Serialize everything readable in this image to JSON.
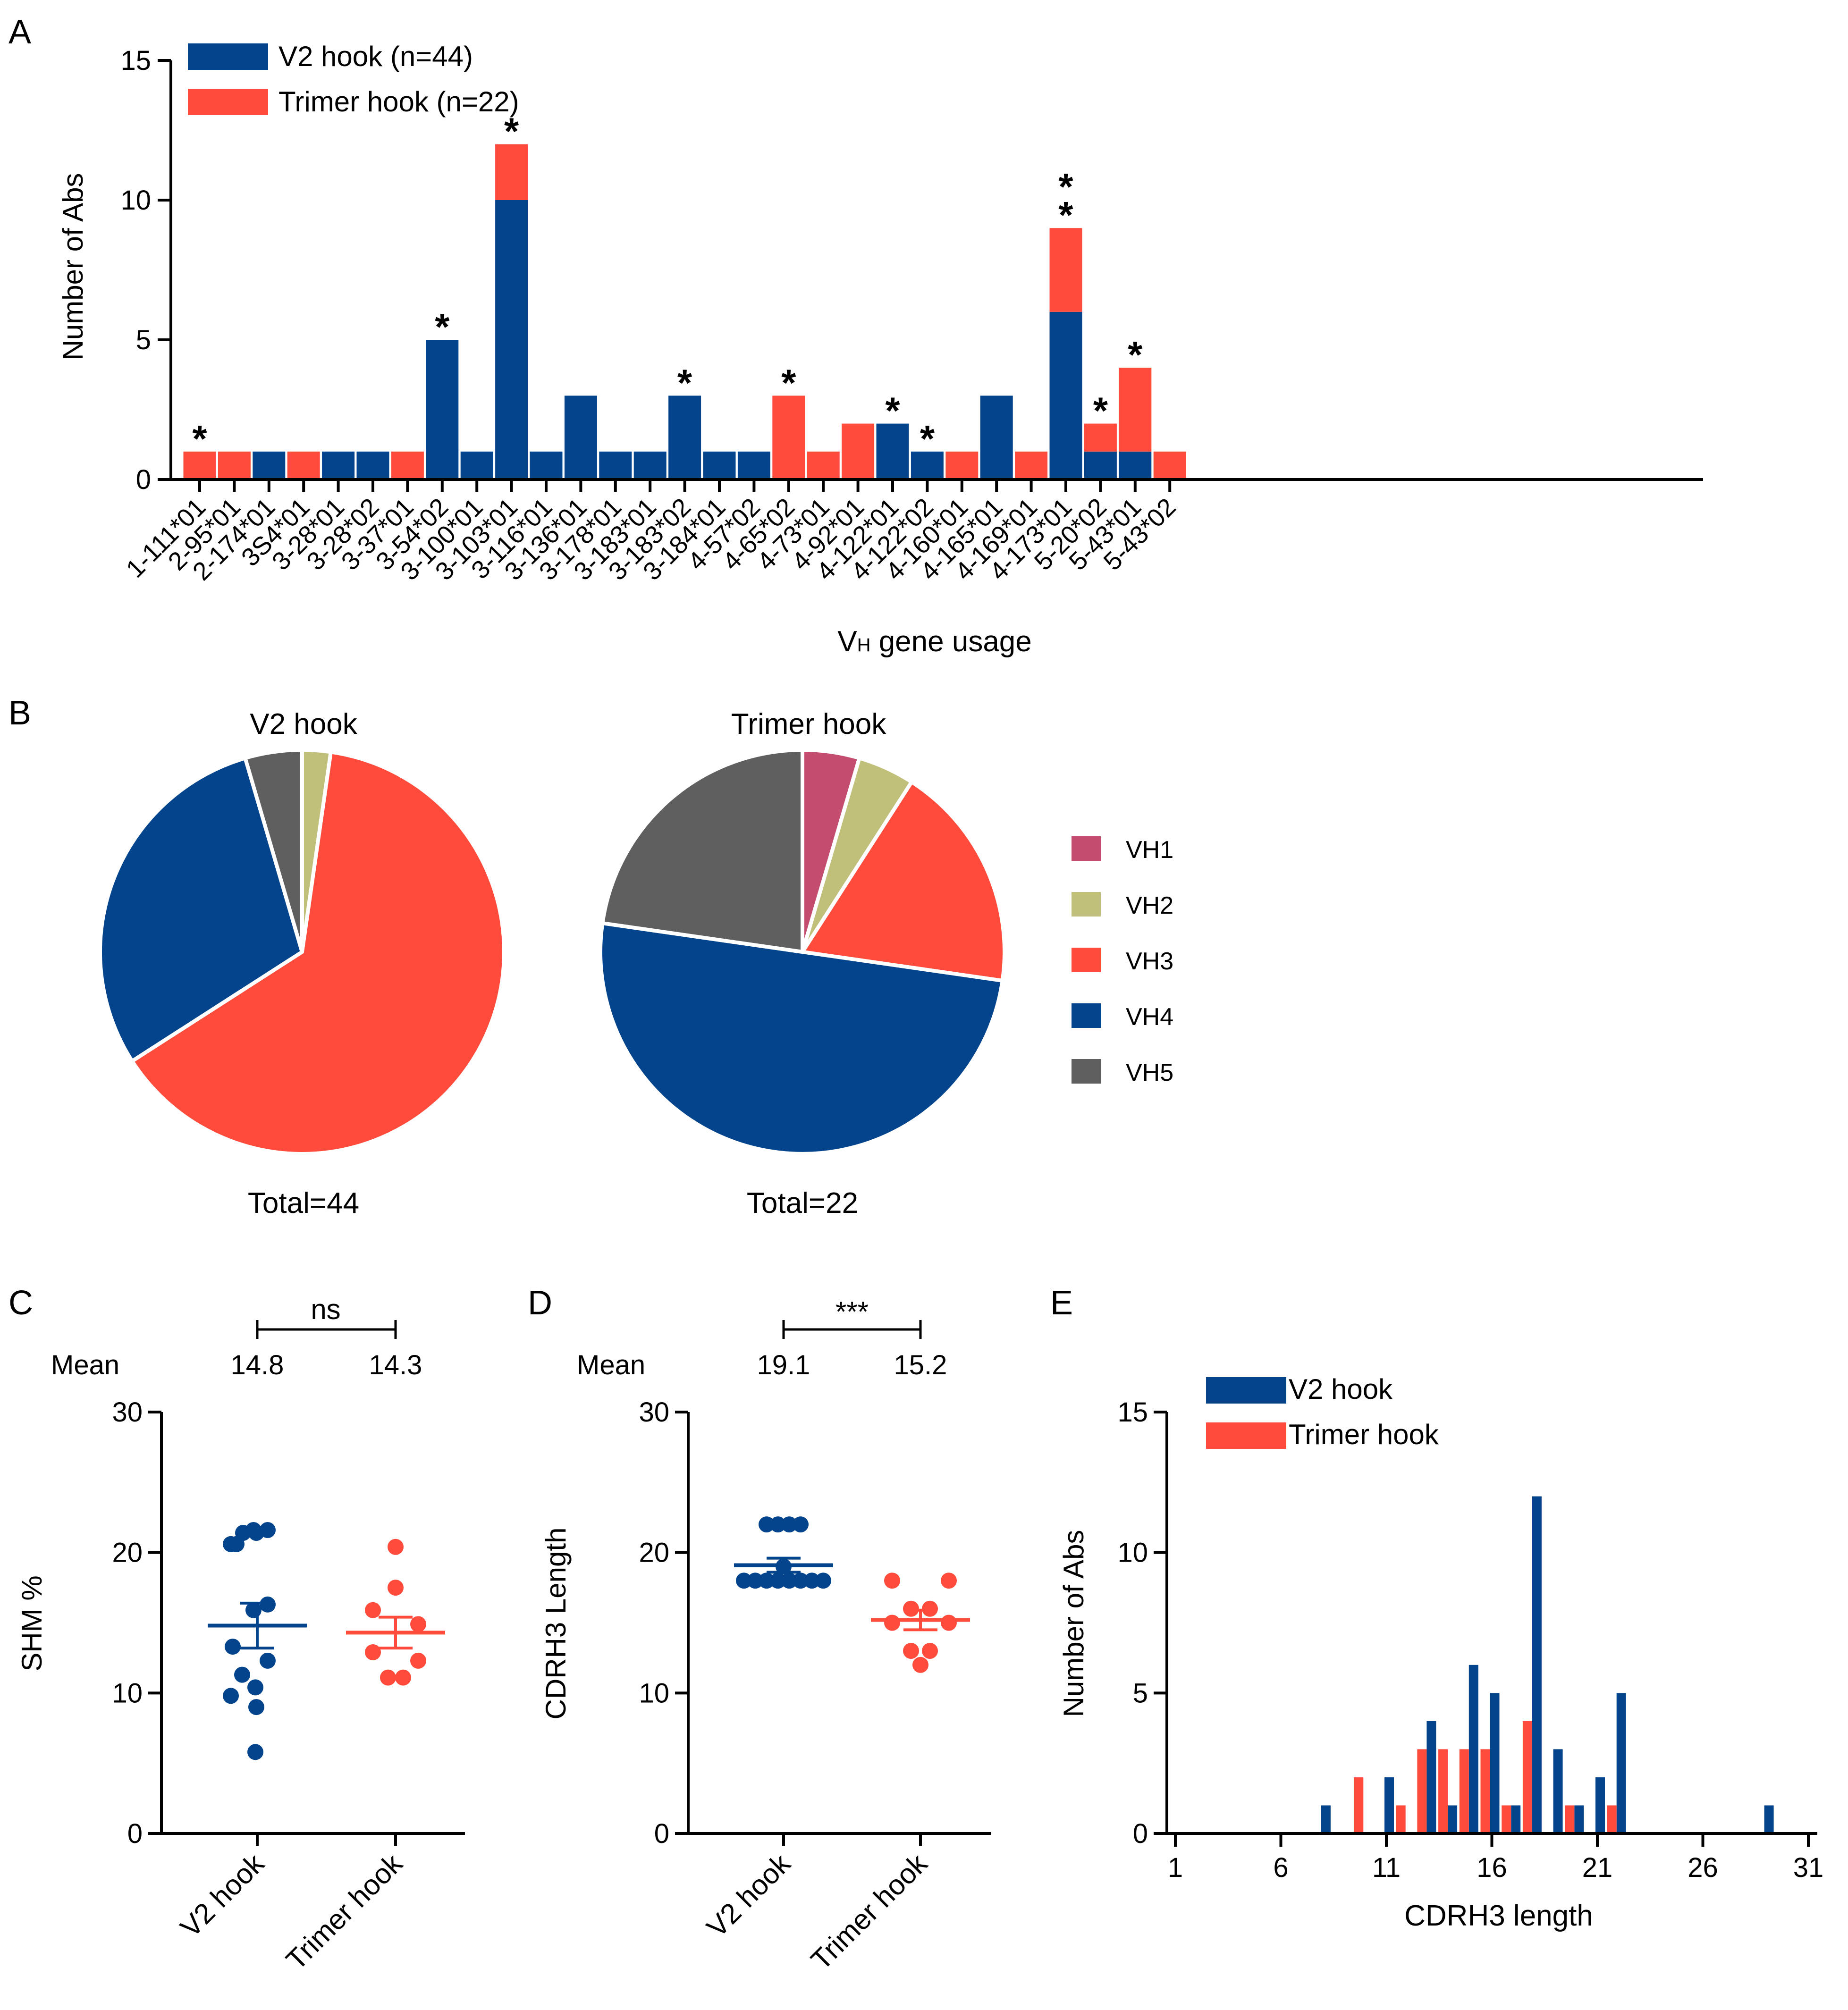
{
  "colors": {
    "v2": "#03448c",
    "trimer": "#fe4b3c",
    "vh1": "#c44c6e",
    "vh2": "#c0c07b",
    "vh3": "#fe4b3c",
    "vh4": "#03448c",
    "vh5": "#5f5f5f",
    "axis": "#000000"
  },
  "panels": {
    "A": "A",
    "B": "B",
    "C": "C",
    "D": "D",
    "E": "E"
  },
  "chart_data": [
    {
      "id": "A",
      "type": "bar",
      "stacked": true,
      "ylabel": "Number of Abs",
      "xlabel": "V",
      "xlabel_sub": "H",
      "xlabel_rest": " gene usage",
      "ylim": [
        0,
        15
      ],
      "yticks": [
        0,
        5,
        10,
        15
      ],
      "categories": [
        "1-111*01",
        "2-95*01",
        "2-174*01",
        "3S4*01",
        "3-28*01",
        "3-28*02",
        "3-37*01",
        "3-54*02",
        "3-100*01",
        "3-103*01",
        "3-116*01",
        "3-136*01",
        "3-178*01",
        "3-183*01",
        "3-183*02",
        "3-184*01",
        "4-57*02",
        "4-65*02",
        "4-73*01",
        "4-92*01",
        "4-122*01",
        "4-122*02",
        "4-160*01",
        "4-165*01",
        "4-169*01",
        "4-173*01",
        "5-20*02",
        "5-43*01",
        "5-43*02"
      ],
      "series": [
        {
          "name": "V2 hook (n=44)",
          "color": "#03448c",
          "values": [
            0,
            0,
            1,
            0,
            1,
            1,
            0,
            5,
            1,
            10,
            1,
            3,
            1,
            1,
            3,
            1,
            1,
            0,
            0,
            0,
            2,
            1,
            0,
            3,
            0,
            6,
            1,
            1,
            0
          ]
        },
        {
          "name": "Trimer hook (n=22)",
          "color": "#fe4b3c",
          "values": [
            1,
            1,
            0,
            1,
            0,
            0,
            1,
            0,
            0,
            2,
            0,
            0,
            0,
            0,
            0,
            0,
            0,
            3,
            1,
            2,
            0,
            0,
            1,
            0,
            1,
            3,
            1,
            3,
            1
          ]
        }
      ],
      "asterisks": [
        {
          "cat": 0,
          "color": "trimer",
          "level": 0
        },
        {
          "cat": 7,
          "color": "v2",
          "level": 0
        },
        {
          "cat": 9,
          "color": "trimer",
          "level": 0
        },
        {
          "cat": 14,
          "color": "v2",
          "level": 0
        },
        {
          "cat": 17,
          "color": "trimer",
          "level": 0
        },
        {
          "cat": 20,
          "color": "v2",
          "level": 0
        },
        {
          "cat": 21,
          "color": "v2",
          "level": 0
        },
        {
          "cat": 25,
          "color": "trimer",
          "level": 0
        },
        {
          "cat": 25,
          "color": "v2",
          "level": 1
        },
        {
          "cat": 26,
          "color": "trimer",
          "level": 0
        },
        {
          "cat": 27,
          "color": "trimer",
          "level": 0
        }
      ],
      "asterisk_text": "*"
    },
    {
      "id": "B",
      "type": "pie",
      "legend": [
        "VH1",
        "VH2",
        "VH3",
        "VH4",
        "VH5"
      ],
      "pies": [
        {
          "title": "V2 hook",
          "total_label": "Total=44",
          "slices": [
            {
              "label": "VH1",
              "value": 0
            },
            {
              "label": "VH2",
              "value": 1
            },
            {
              "label": "VH3",
              "value": 28
            },
            {
              "label": "VH4",
              "value": 13
            },
            {
              "label": "VH5",
              "value": 2
            }
          ]
        },
        {
          "title": "Trimer hook",
          "total_label": "Total=22",
          "slices": [
            {
              "label": "VH1",
              "value": 1
            },
            {
              "label": "VH2",
              "value": 1
            },
            {
              "label": "VH3",
              "value": 4
            },
            {
              "label": "VH4",
              "value": 11
            },
            {
              "label": "VH5",
              "value": 5
            }
          ]
        }
      ]
    },
    {
      "id": "C",
      "type": "scatter",
      "ylabel": "SHM %",
      "ylim": [
        0,
        30
      ],
      "yticks": [
        0,
        10,
        20,
        30
      ],
      "groups": [
        "V2 hook",
        "Trimer hook"
      ],
      "mean_label": "Mean",
      "means_text": [
        "14.8",
        "14.3"
      ],
      "significance": "ns",
      "series": [
        {
          "name": "V2 hook",
          "color": "#03448c",
          "mean": 14.8,
          "sem": 1.6,
          "points": [
            {
              "y": 21.6,
              "dx": -0.04
            },
            {
              "y": 21.6,
              "dx": 0.11
            },
            {
              "y": 21.4,
              "dx": -0.15
            },
            {
              "y": 21.4,
              "dx": -0.01
            },
            {
              "y": 20.6,
              "dx": -0.28
            },
            {
              "y": 20.6,
              "dx": -0.22
            },
            {
              "y": 16.3,
              "dx": 0.11
            },
            {
              "y": 15.9,
              "dx": -0.04
            },
            {
              "y": 13.3,
              "dx": -0.26
            },
            {
              "y": 12.3,
              "dx": 0.11
            },
            {
              "y": 11.3,
              "dx": -0.16
            },
            {
              "y": 10.4,
              "dx": -0.02
            },
            {
              "y": 9.8,
              "dx": -0.28
            },
            {
              "y": 9.0,
              "dx": -0.01
            },
            {
              "y": 5.8,
              "dx": -0.02
            }
          ]
        },
        {
          "name": "Trimer hook",
          "color": "#fe4b3c",
          "mean": 14.3,
          "sem": 1.1,
          "points": [
            {
              "y": 20.4,
              "dx": 0.0
            },
            {
              "y": 17.5,
              "dx": 0.0
            },
            {
              "y": 15.9,
              "dx": -0.24
            },
            {
              "y": 14.9,
              "dx": 0.24
            },
            {
              "y": 12.9,
              "dx": -0.24
            },
            {
              "y": 12.3,
              "dx": 0.24
            },
            {
              "y": 11.1,
              "dx": -0.08
            },
            {
              "y": 11.1,
              "dx": 0.08
            }
          ]
        }
      ]
    },
    {
      "id": "D",
      "type": "scatter",
      "ylabel": "CDRH3 Length",
      "ylim": [
        0,
        30
      ],
      "yticks": [
        0,
        10,
        20,
        30
      ],
      "groups": [
        "V2 hook",
        "Trimer hook"
      ],
      "mean_label": "Mean",
      "means_text": [
        "19.1",
        "15.2"
      ],
      "significance": "***",
      "series": [
        {
          "name": "V2 hook",
          "color": "#03448c",
          "mean": 19.1,
          "sem": 0.5,
          "points": [
            {
              "y": 22,
              "dx": -0.18
            },
            {
              "y": 22,
              "dx": -0.06
            },
            {
              "y": 22,
              "dx": 0.06
            },
            {
              "y": 22,
              "dx": 0.18
            },
            {
              "y": 19,
              "dx": 0.0
            },
            {
              "y": 18,
              "dx": -0.42
            },
            {
              "y": 18,
              "dx": -0.3
            },
            {
              "y": 18,
              "dx": -0.18
            },
            {
              "y": 18,
              "dx": -0.06
            },
            {
              "y": 18,
              "dx": 0.06
            },
            {
              "y": 18,
              "dx": 0.18
            },
            {
              "y": 18,
              "dx": 0.3
            },
            {
              "y": 18,
              "dx": 0.42
            }
          ]
        },
        {
          "name": "Trimer hook",
          "color": "#fe4b3c",
          "mean": 15.2,
          "sem": 0.7,
          "points": [
            {
              "y": 18,
              "dx": -0.3
            },
            {
              "y": 18,
              "dx": 0.3
            },
            {
              "y": 16,
              "dx": -0.1
            },
            {
              "y": 16,
              "dx": 0.1
            },
            {
              "y": 15,
              "dx": -0.3
            },
            {
              "y": 15,
              "dx": 0.3
            },
            {
              "y": 13,
              "dx": -0.1
            },
            {
              "y": 13,
              "dx": 0.1
            },
            {
              "y": 12,
              "dx": 0.0
            }
          ]
        }
      ]
    },
    {
      "id": "E",
      "type": "bar",
      "ylabel": "Number of Abs",
      "xlabel": "CDRH3 length",
      "xlim": [
        0,
        32
      ],
      "xticks": [
        1,
        6,
        11,
        16,
        21,
        26,
        31
      ],
      "ylim": [
        0,
        15
      ],
      "yticks": [
        0,
        5,
        10,
        15
      ],
      "series": [
        {
          "name": "V2 hook",
          "color": "#03448c",
          "data": [
            [
              8,
              1
            ],
            [
              11,
              2
            ],
            [
              13,
              4
            ],
            [
              14,
              1
            ],
            [
              15,
              6
            ],
            [
              16,
              5
            ],
            [
              17,
              1
            ],
            [
              18,
              12
            ],
            [
              19,
              3
            ],
            [
              20,
              1
            ],
            [
              21,
              2
            ],
            [
              22,
              5
            ],
            [
              29,
              1
            ]
          ]
        },
        {
          "name": "Trimer hook",
          "color": "#fe4b3c",
          "data": [
            [
              10,
              2
            ],
            [
              12,
              1
            ],
            [
              13,
              3
            ],
            [
              14,
              3
            ],
            [
              15,
              3
            ],
            [
              16,
              3
            ],
            [
              17,
              1
            ],
            [
              18,
              4
            ],
            [
              20,
              1
            ],
            [
              22,
              1
            ]
          ]
        }
      ]
    }
  ]
}
